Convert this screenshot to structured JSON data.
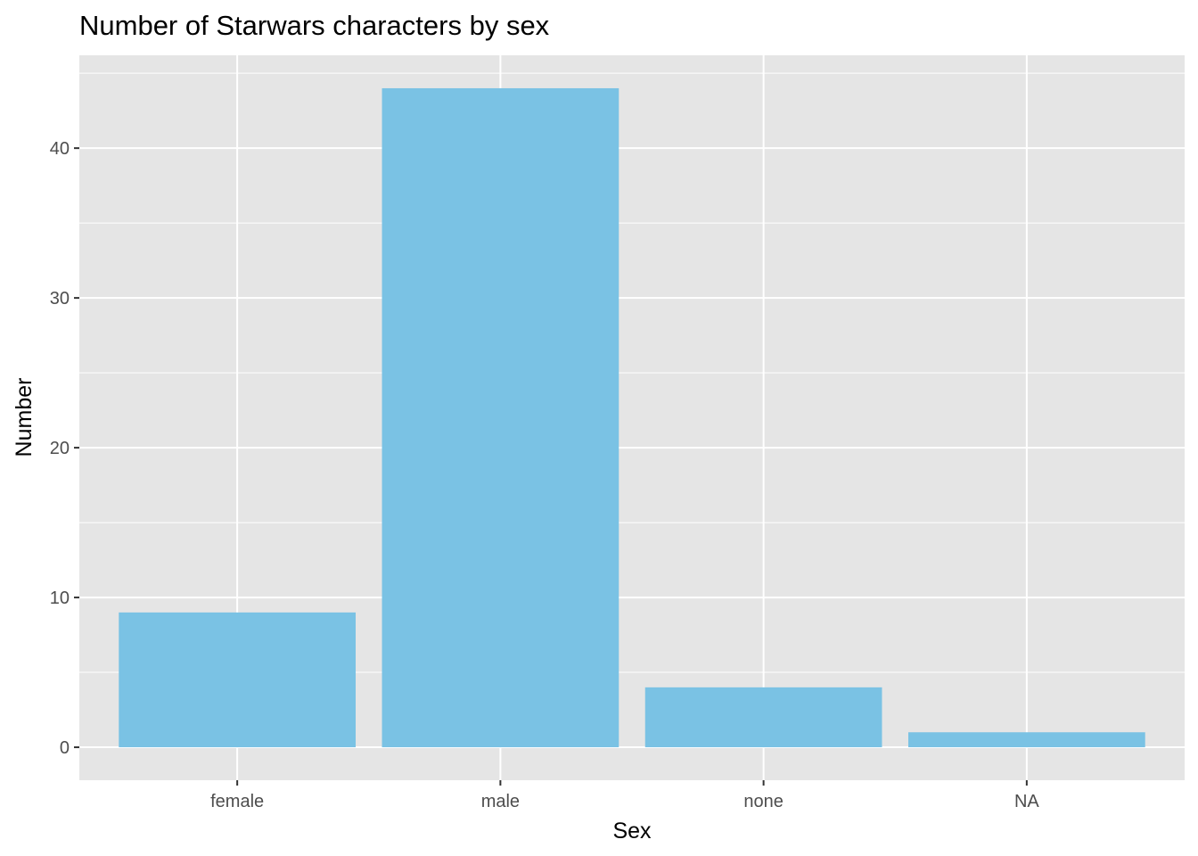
{
  "chart_data": {
    "type": "bar",
    "title": "Number of Starwars characters by sex",
    "xlabel": "Sex",
    "ylabel": "Number",
    "categories": [
      "female",
      "male",
      "none",
      "NA"
    ],
    "values": [
      9,
      44,
      4,
      1
    ],
    "ylim": [
      -2.2,
      46.2
    ],
    "yticks": [
      0,
      10,
      20,
      30,
      40
    ],
    "y_minor_ticks": [
      5,
      15,
      25,
      35,
      45
    ],
    "grid": true,
    "legend": "none",
    "colors": {
      "bar_fill": "#7AC2E4",
      "panel_background": "#E5E5E5",
      "grid_line": "#FFFFFF",
      "tick_mark": "#333333"
    }
  }
}
